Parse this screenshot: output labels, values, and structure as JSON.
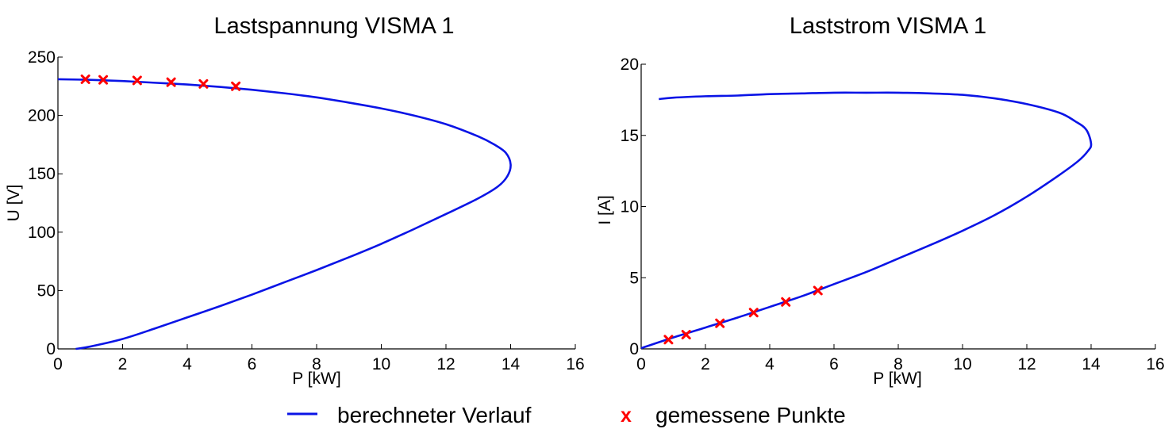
{
  "chart_data": [
    {
      "type": "line",
      "title": "Lastspannung  VISMA 1",
      "xlabel": "P [kW]",
      "ylabel": "U [V]",
      "xlim": [
        0,
        16
      ],
      "ylim": [
        0,
        250
      ],
      "xticks": [
        "0",
        "2",
        "4",
        "6",
        "8",
        "10",
        "12",
        "14",
        "16"
      ],
      "yticks": [
        "0",
        "50",
        "100",
        "150",
        "200",
        "250"
      ],
      "series": [
        {
          "name": "berechneter Verlauf",
          "color": "#0a14e6",
          "x": [
            0.0,
            1.0,
            2.0,
            3.0,
            4.0,
            5.0,
            6.0,
            7.0,
            8.0,
            9.0,
            10.0,
            11.0,
            12.0,
            13.0,
            13.5,
            13.85,
            14.0,
            13.9,
            13.6,
            13.0,
            12.0,
            11.0,
            10.0,
            9.0,
            8.0,
            7.0,
            6.0,
            5.0,
            4.0,
            3.0,
            2.0,
            1.0,
            0.55
          ],
          "y": [
            231,
            230.5,
            229.5,
            228,
            226.5,
            224.5,
            222,
            219,
            215.5,
            211,
            206,
            200,
            192.5,
            182,
            175,
            168,
            158,
            148,
            139,
            129,
            115.5,
            102.5,
            90,
            78.5,
            67.5,
            57,
            46.5,
            36.5,
            27,
            17.5,
            8.5,
            2,
            0
          ]
        },
        {
          "name": "gemessene Punkte",
          "color": "#ff0000",
          "marker": "x",
          "x": [
            0.85,
            1.4,
            2.45,
            3.5,
            4.5,
            5.5
          ],
          "y": [
            231,
            230.5,
            230,
            228.5,
            227,
            225
          ]
        }
      ]
    },
    {
      "type": "line",
      "title": "Laststrom  VISMA 1",
      "xlabel": "P [kW]",
      "ylabel": "I [A]",
      "xlim": [
        0,
        16
      ],
      "ylim": [
        0,
        20
      ],
      "xticks": [
        "0",
        "2",
        "4",
        "6",
        "8",
        "10",
        "12",
        "14",
        "16"
      ],
      "yticks": [
        "0",
        "5",
        "10",
        "15",
        "20"
      ],
      "series": [
        {
          "name": "berechneter Verlauf",
          "color": "#0a14e6",
          "x": [
            0.0,
            1.0,
            2.0,
            3.0,
            4.0,
            5.0,
            6.0,
            7.0,
            8.0,
            9.0,
            10.0,
            11.0,
            12.0,
            13.0,
            13.6,
            13.9,
            14.0,
            13.85,
            13.5,
            13.0,
            12.0,
            11.0,
            10.0,
            9.0,
            8.0,
            7.0,
            6.0,
            5.0,
            4.0,
            3.0,
            2.0,
            1.0,
            0.55
          ],
          "y": [
            0.05,
            0.8,
            1.5,
            2.2,
            2.95,
            3.7,
            4.55,
            5.4,
            6.35,
            7.3,
            8.3,
            9.4,
            10.7,
            12.2,
            13.2,
            13.9,
            14.4,
            15.4,
            16.0,
            16.6,
            17.2,
            17.6,
            17.85,
            17.95,
            18.0,
            18.0,
            18.0,
            17.95,
            17.9,
            17.8,
            17.75,
            17.65,
            17.55
          ]
        },
        {
          "name": "gemessene Punkte",
          "color": "#ff0000",
          "marker": "x",
          "x": [
            0.85,
            1.4,
            2.45,
            3.5,
            4.5,
            5.5
          ],
          "y": [
            0.65,
            1.0,
            1.8,
            2.55,
            3.3,
            4.1
          ]
        }
      ]
    }
  ],
  "legend": {
    "placement": "bottom-center",
    "items": [
      {
        "label": "berechneter Verlauf",
        "symbol": "line",
        "color": "#0a14e6"
      },
      {
        "label": "gemessene Punkte",
        "symbol": "x",
        "color": "#ff0000",
        "glyph": "x"
      }
    ]
  }
}
